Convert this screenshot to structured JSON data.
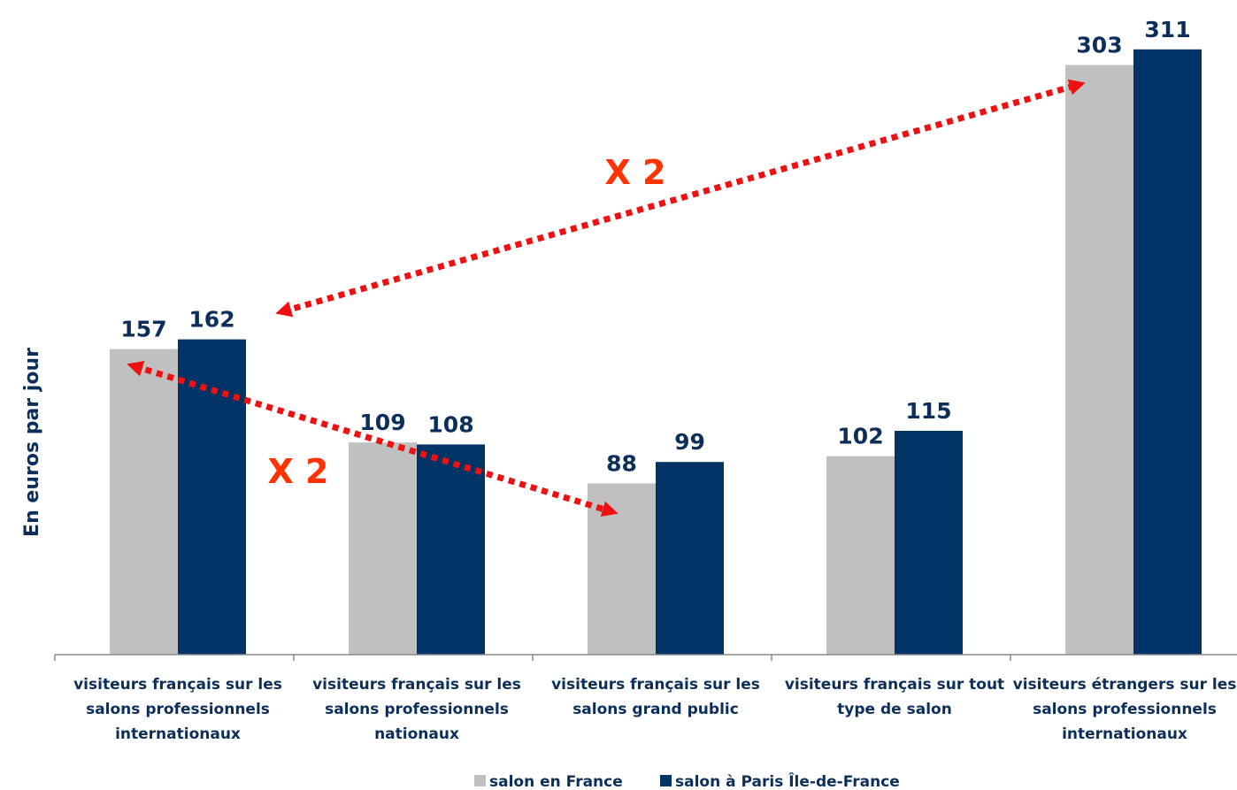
{
  "chart_data": {
    "type": "bar",
    "ylabel": "En euros par jour",
    "xlabel": "",
    "ylim": [
      0,
      335
    ],
    "grid": false,
    "legend_position": "bottom",
    "categories": [
      [
        "visiteurs français sur les",
        "salons professionnels",
        "internationaux"
      ],
      [
        "visiteurs français sur les",
        "salons professionnels",
        "nationaux"
      ],
      [
        "visiteurs français sur les",
        "salons grand public"
      ],
      [
        "visiteurs français sur tout",
        "type de salon"
      ],
      [
        "visiteurs étrangers sur les",
        "salons professionnels",
        "internationaux"
      ]
    ],
    "series": [
      {
        "name": "salon en France",
        "color": "#c0c0c0",
        "values": [
          157,
          109,
          88,
          102,
          303
        ]
      },
      {
        "name": "salon à Paris Île-de-France",
        "color": "#003366",
        "values": [
          162,
          108,
          99,
          115,
          311
        ]
      }
    ],
    "annotations": [
      {
        "text": "X 2",
        "color": "#ff3300"
      },
      {
        "text": "X 2",
        "color": "#ff3300"
      }
    ]
  }
}
